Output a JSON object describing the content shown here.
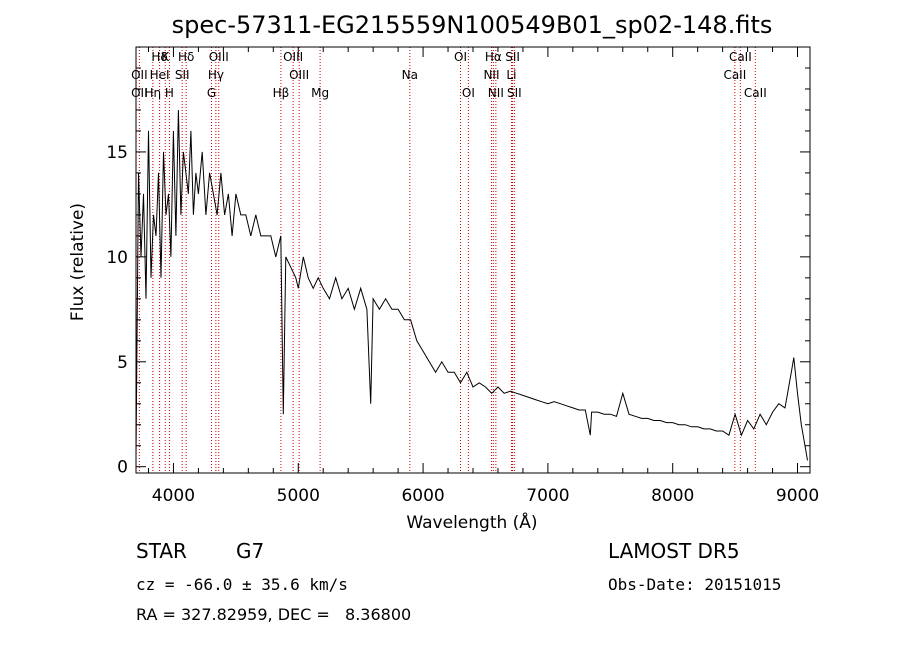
{
  "chart_data": {
    "type": "line",
    "title": "spec-57311-EG215559N100549B01_sp02-148.fits",
    "xlabel": "Wavelength (Å)",
    "ylabel": "Flux (relative)",
    "xlim": [
      3700,
      9100
    ],
    "ylim": [
      -0.3,
      20
    ],
    "x_ticks": [
      4000,
      5000,
      6000,
      7000,
      8000,
      9000
    ],
    "y_ticks": [
      0,
      5,
      10,
      15
    ],
    "grid": false,
    "series": [
      {
        "values_note": "",
        "x": [
          3700,
          3720,
          3740,
          3760,
          3780,
          3800,
          3820,
          3840,
          3860,
          3880,
          3900,
          3920,
          3940,
          3960,
          3980,
          4000,
          4020,
          4040,
          4060,
          4080,
          4100,
          4120,
          4140,
          4160,
          4180,
          4200,
          4230,
          4260,
          4290,
          4320,
          4350,
          4380,
          4410,
          4440,
          4470,
          4500,
          4540,
          4580,
          4620,
          4660,
          4700,
          4740,
          4780,
          4820,
          4860,
          4880,
          4900,
          4940,
          4980,
          5000,
          5040,
          5080,
          5120,
          5160,
          5200,
          5250,
          5300,
          5350,
          5400,
          5450,
          5500,
          5550,
          5580,
          5600,
          5650,
          5700,
          5750,
          5800,
          5850,
          5900,
          5950,
          6000,
          6050,
          6100,
          6150,
          6200,
          6250,
          6300,
          6350,
          6400,
          6450,
          6500,
          6550,
          6600,
          6650,
          6700,
          6750,
          6800,
          6850,
          6900,
          6950,
          7000,
          7050,
          7100,
          7150,
          7200,
          7250,
          7300,
          7340,
          7350,
          7400,
          7450,
          7500,
          7550,
          7600,
          7650,
          7700,
          7750,
          7800,
          7850,
          7900,
          7950,
          8000,
          8050,
          8100,
          8150,
          8200,
          8250,
          8300,
          8350,
          8400,
          8450,
          8500,
          8550,
          8600,
          8650,
          8700,
          8750,
          8800,
          8850,
          8900,
          8950,
          8970,
          9000,
          9030,
          9060,
          9080
        ],
        "y": [
          0.5,
          14,
          10,
          13,
          8,
          16,
          9,
          12,
          11,
          14,
          9,
          15,
          12,
          13,
          10,
          16,
          11,
          17,
          12,
          15,
          14,
          13,
          16,
          12,
          14,
          13,
          15,
          12,
          14,
          13,
          12,
          14,
          12,
          13,
          11,
          13,
          12,
          12,
          11,
          12,
          11,
          11,
          11,
          10,
          11,
          2.5,
          10,
          9.5,
          9,
          8.5,
          10,
          9,
          8.5,
          9,
          8.5,
          8,
          9,
          8,
          8.5,
          7.5,
          8.5,
          7.5,
          3,
          8,
          7.5,
          8,
          7.5,
          7.5,
          7,
          7,
          6,
          5.5,
          5,
          4.5,
          5,
          4.5,
          4.5,
          4,
          4.5,
          3.8,
          4,
          3.8,
          3.5,
          3.8,
          3.5,
          3.6,
          3.5,
          3.4,
          3.3,
          3.2,
          3.1,
          3,
          3.1,
          3,
          2.9,
          2.8,
          2.7,
          2.7,
          1.5,
          2.6,
          2.6,
          2.5,
          2.5,
          2.4,
          3.5,
          2.5,
          2.4,
          2.3,
          2.3,
          2.2,
          2.2,
          2.1,
          2.1,
          2,
          2,
          1.9,
          1.9,
          1.8,
          1.8,
          1.7,
          1.7,
          1.5,
          2.5,
          1.5,
          2.2,
          1.8,
          2.5,
          2,
          2.6,
          3,
          2.8,
          4.5,
          5.2,
          3.5,
          2,
          1,
          0.3
        ]
      }
    ],
    "line_markers": [
      {
        "label": "Hδ",
        "x": 3889,
        "row": 0
      },
      {
        "label": "OII",
        "x": 3727,
        "row": 1
      },
      {
        "label": "OII",
        "x": 3727,
        "row": 2
      },
      {
        "label": "K",
        "x": 3934,
        "row": 0
      },
      {
        "label": "HeI",
        "x": 3889,
        "row": 1
      },
      {
        "label": "Hη",
        "x": 3835,
        "row": 2
      },
      {
        "label": "SII",
        "x": 4070,
        "row": 1
      },
      {
        "label": "H",
        "x": 3968,
        "row": 2
      },
      {
        "label": "Hδ",
        "x": 4102,
        "row": 0
      },
      {
        "label": "OIII",
        "x": 4363,
        "row": 0
      },
      {
        "label": "Hγ",
        "x": 4340,
        "row": 1
      },
      {
        "label": "G",
        "x": 4305,
        "row": 2
      },
      {
        "label": "Hβ",
        "x": 4861,
        "row": 2
      },
      {
        "label": "OIII",
        "x": 4959,
        "row": 0
      },
      {
        "label": "OIII",
        "x": 5007,
        "row": 1
      },
      {
        "label": "Mg",
        "x": 5175,
        "row": 2
      },
      {
        "label": "Na",
        "x": 5894,
        "row": 1
      },
      {
        "label": "OI",
        "x": 6300,
        "row": 0
      },
      {
        "label": "OI",
        "x": 6363,
        "row": 2
      },
      {
        "label": "Hα",
        "x": 6563,
        "row": 0
      },
      {
        "label": "SII",
        "x": 6717,
        "row": 0
      },
      {
        "label": "NII",
        "x": 6548,
        "row": 1
      },
      {
        "label": "Li",
        "x": 6708,
        "row": 1
      },
      {
        "label": "NII",
        "x": 6583,
        "row": 2
      },
      {
        "label": "SII",
        "x": 6731,
        "row": 2
      },
      {
        "label": "CaII",
        "x": 8542,
        "row": 0
      },
      {
        "label": "CaII",
        "x": 8498,
        "row": 1
      },
      {
        "label": "CaII",
        "x": 8662,
        "row": 2
      }
    ]
  },
  "info": {
    "star_type": "STAR",
    "subclass": "G7",
    "survey": "LAMOST DR5",
    "cz": "cz = -66.0 ± 35.6 km/s",
    "obs_date": "Obs-Date: 20151015",
    "radec": "RA = 327.82959, DEC =   8.36800"
  },
  "colors": {
    "spectrum": "#000000",
    "marker_line": "#cc0000",
    "axis": "#000000"
  }
}
